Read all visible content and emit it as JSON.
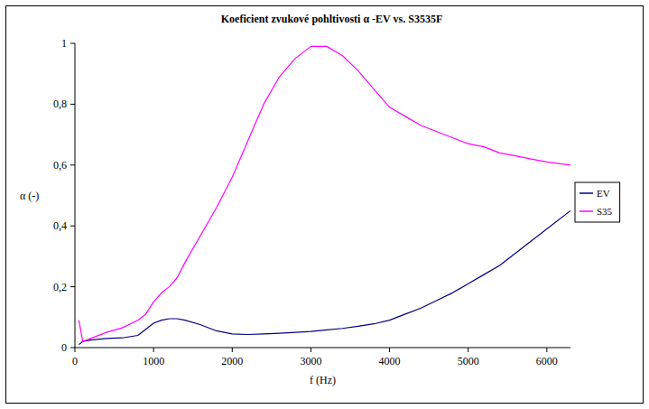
{
  "chart_data": {
    "type": "line",
    "title": "Koeficient zvukové pohltivosti α -EV vs. S3535F",
    "x_label": "f (Hz)",
    "y_label": "α (-)",
    "x": [
      50,
      100,
      200,
      400,
      600,
      800,
      900,
      1000,
      1100,
      1200,
      1300,
      1400,
      1600,
      1800,
      2000,
      2200,
      2400,
      2600,
      2800,
      3000,
      3200,
      3400,
      3600,
      3800,
      4000,
      4200,
      4400,
      4600,
      4800,
      5000,
      5200,
      5400,
      5600,
      5800,
      6000,
      6300
    ],
    "series": [
      {
        "name": "EV",
        "color": "#000080",
        "values": [
          0.01,
          0.02,
          0.025,
          0.03,
          0.032,
          0.04,
          0.06,
          0.08,
          0.09,
          0.095,
          0.095,
          0.09,
          0.075,
          0.055,
          0.045,
          0.043,
          0.045,
          0.047,
          0.05,
          0.053,
          0.058,
          0.063,
          0.07,
          0.078,
          0.09,
          0.11,
          0.13,
          0.155,
          0.18,
          0.21,
          0.24,
          0.27,
          0.31,
          0.35,
          0.39,
          0.45
        ]
      },
      {
        "name": "S35",
        "color": "#ff00ff",
        "values": [
          0.09,
          0.02,
          0.03,
          0.05,
          0.065,
          0.09,
          0.11,
          0.15,
          0.18,
          0.2,
          0.23,
          0.28,
          0.37,
          0.46,
          0.56,
          0.68,
          0.8,
          0.89,
          0.95,
          0.99,
          0.99,
          0.96,
          0.91,
          0.85,
          0.79,
          0.76,
          0.73,
          0.71,
          0.69,
          0.67,
          0.66,
          0.64,
          0.63,
          0.62,
          0.61,
          0.6
        ]
      }
    ],
    "xlim": [
      0,
      6300
    ],
    "xticks": [
      0,
      1000,
      2000,
      3000,
      4000,
      5000,
      6000
    ],
    "ylim": [
      0,
      1
    ],
    "yticks": [
      0,
      {
        "value": 0.2,
        "label": "0,2"
      },
      {
        "value": 0.4,
        "label": "0,4"
      },
      {
        "value": 0.6,
        "label": "0,6"
      },
      {
        "value": 0.8,
        "label": "0,8"
      },
      1
    ],
    "grid": false,
    "legend": "right"
  }
}
